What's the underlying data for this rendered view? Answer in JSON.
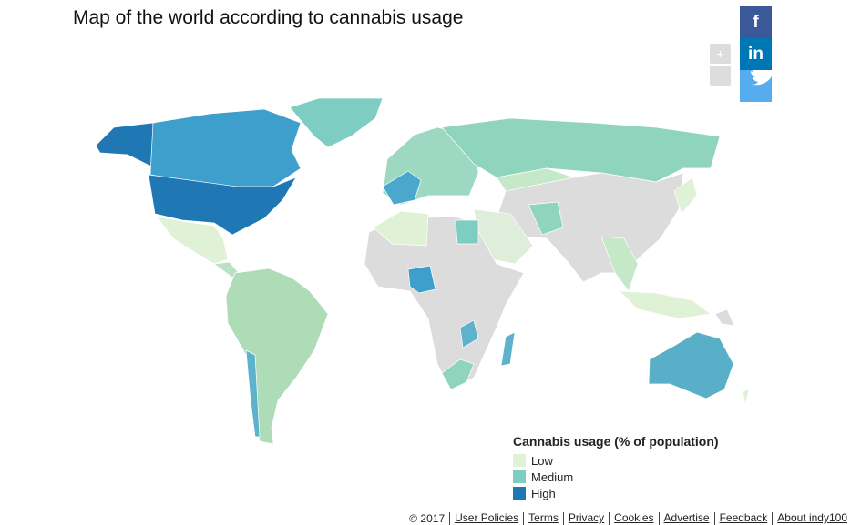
{
  "title": "Map of the world according to cannabis usage",
  "zoom": [
    "+",
    "−"
  ],
  "social": [
    "f",
    "in"
  ],
  "legend": {
    "title": "Cannabis usage (% of population)",
    "items": [
      {
        "label": "Low",
        "color": "#dff2d6"
      },
      {
        "label": "Medium",
        "color": "#7ecdc2"
      },
      {
        "label": "High",
        "color": "#1f78b4"
      }
    ]
  },
  "footer": {
    "copyright": "© 2017",
    "links": [
      "User Policies",
      "Terms",
      "Privacy",
      "Cookies",
      "Advertise",
      "Feedback",
      "About indy100"
    ]
  }
}
